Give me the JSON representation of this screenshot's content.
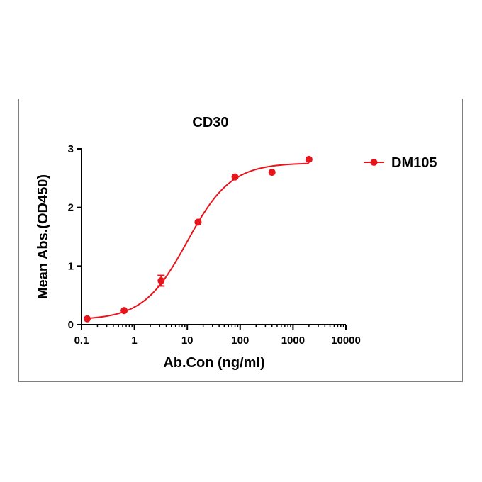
{
  "chart_data": {
    "type": "line",
    "title": "CD30",
    "xlabel": "Ab.Con (ng/ml)",
    "ylabel": "Mean Abs.(OD450)",
    "xscale": "log",
    "xlim": [
      0.1,
      10000
    ],
    "ylim": [
      0,
      3
    ],
    "x_ticks": [
      0.1,
      1,
      10,
      100,
      1000,
      10000
    ],
    "x_tick_labels": [
      "0.1",
      "1",
      "10",
      "100",
      "1000",
      "10000"
    ],
    "y_ticks": [
      0,
      1,
      2,
      3
    ],
    "y_tick_labels": [
      "0",
      "1",
      "2",
      "3"
    ],
    "legend_position": "right",
    "colors": {
      "series": "#e8141b",
      "axis": "#000000",
      "frame": "#7f7f7f"
    },
    "series": [
      {
        "name": "DM105",
        "x": [
          0.128,
          0.64,
          3.2,
          16,
          80,
          400,
          2000
        ],
        "y": [
          0.1,
          0.24,
          0.75,
          1.75,
          2.52,
          2.6,
          2.82
        ],
        "error": [
          0,
          0,
          0.09,
          0,
          0,
          0,
          0
        ],
        "fit": {
          "model": "4PL",
          "bottom": 0.08,
          "top": 2.76,
          "ec50": 10,
          "hill": 1.05
        }
      }
    ]
  }
}
